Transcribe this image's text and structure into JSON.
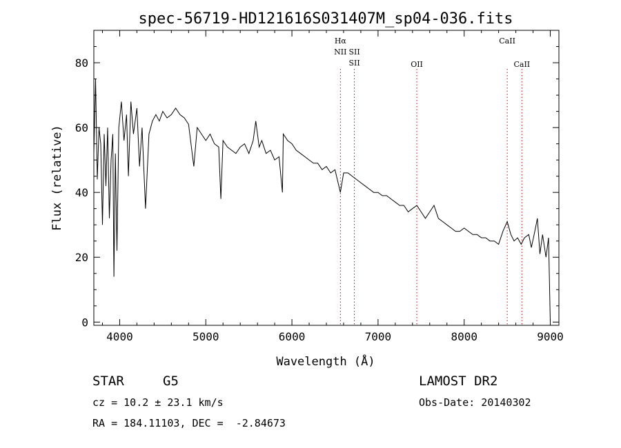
{
  "chart_data": {
    "type": "line",
    "title": "spec-56719-HD121616S031407M_sp04-036.fits",
    "xlabel": "Wavelength (Å)",
    "ylabel": "Flux (relative)",
    "xlim": [
      3700,
      9100
    ],
    "ylim": [
      -1,
      90
    ],
    "xticks": [
      4000,
      5000,
      6000,
      7000,
      8000,
      9000
    ],
    "yticks": [
      0,
      20,
      40,
      60,
      80
    ],
    "grid": false,
    "series": [
      {
        "x": [
          3700,
          3720,
          3740,
          3760,
          3780,
          3800,
          3820,
          3840,
          3860,
          3880,
          3900,
          3920,
          3933,
          3950,
          3968,
          3990,
          4020,
          4050,
          4080,
          4101,
          4130,
          4160,
          4200,
          4230,
          4260,
          4300,
          4340,
          4380,
          4420,
          4460,
          4500,
          4550,
          4600,
          4650,
          4700,
          4750,
          4800,
          4861,
          4900,
          4950,
          5000,
          5050,
          5100,
          5150,
          5175,
          5200,
          5250,
          5300,
          5350,
          5400,
          5450,
          5500,
          5550,
          5580,
          5620,
          5650,
          5700,
          5750,
          5800,
          5850,
          5890,
          5900,
          5950,
          6000,
          6050,
          6100,
          6150,
          6200,
          6250,
          6300,
          6350,
          6400,
          6450,
          6500,
          6563,
          6600,
          6650,
          6700,
          6750,
          6800,
          6850,
          6900,
          6950,
          7000,
          7050,
          7100,
          7150,
          7200,
          7250,
          7300,
          7350,
          7400,
          7450,
          7500,
          7550,
          7600,
          7650,
          7700,
          7750,
          7800,
          7850,
          7900,
          7950,
          8000,
          8050,
          8100,
          8150,
          8200,
          8250,
          8300,
          8350,
          8400,
          8450,
          8500,
          8542,
          8580,
          8620,
          8662,
          8700,
          8750,
          8780,
          8820,
          8850,
          8880,
          8910,
          8950,
          8980,
          9000
        ],
        "values": [
          52,
          75,
          44,
          60,
          55,
          30,
          58,
          42,
          60,
          32,
          50,
          58,
          14,
          52,
          22,
          60,
          68,
          56,
          64,
          45,
          68,
          58,
          66,
          48,
          60,
          35,
          58,
          62,
          64,
          62,
          65,
          63,
          64,
          66,
          64,
          63,
          61,
          48,
          60,
          58,
          56,
          58,
          55,
          54,
          38,
          56,
          54,
          53,
          52,
          54,
          55,
          52,
          56,
          62,
          54,
          56,
          52,
          53,
          50,
          51,
          40,
          58,
          56,
          55,
          53,
          52,
          51,
          50,
          49,
          49,
          47,
          48,
          46,
          47,
          40,
          46,
          46,
          45,
          44,
          43,
          42,
          41,
          40,
          40,
          39,
          39,
          38,
          37,
          36,
          36,
          34,
          35,
          36,
          34,
          32,
          34,
          36,
          32,
          31,
          30,
          29,
          28,
          28,
          29,
          28,
          27,
          27,
          26,
          26,
          25,
          25,
          24,
          28,
          31,
          27,
          25,
          26,
          24,
          26,
          27,
          23,
          28,
          32,
          21,
          27,
          20,
          26,
          0
        ]
      }
    ],
    "lines": [
      {
        "wavelength": 6563,
        "labels": [
          "Hα",
          "NII"
        ],
        "color": "#cc0000"
      },
      {
        "wavelength": 6725,
        "labels": [
          "SII",
          "SII"
        ],
        "color": "#cc0000"
      },
      {
        "wavelength": 7450,
        "labels": [
          "OII"
        ],
        "color": "#cc0000"
      },
      {
        "wavelength": 8500,
        "labels": [
          "CaII"
        ],
        "color": "#cc0000"
      },
      {
        "wavelength": 8670,
        "labels": [
          "CaII"
        ],
        "color": "#cc0000"
      }
    ]
  },
  "info": {
    "object_class": "STAR",
    "subclass": "G5",
    "survey": "LAMOST DR2",
    "velocity": "cz = 10.2 ± 23.1 km/s",
    "obs_date": "Obs-Date: 20140302",
    "coords": "RA = 184.11103, DEC =  -2.84673"
  }
}
